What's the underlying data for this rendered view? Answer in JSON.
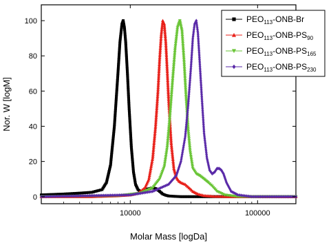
{
  "chart_data": {
    "type": "scatter",
    "xlabel": "Molar Mass [logDa]",
    "ylabel": "Nor. W [logM]",
    "xscale": "log",
    "xlim": [
      2000,
      200000
    ],
    "ylim": [
      -4,
      109
    ],
    "xticks": [
      {
        "value": 10000,
        "label": "10000"
      },
      {
        "value": 100000,
        "label": "100000"
      }
    ],
    "yticks": [
      {
        "value": 0,
        "label": "0"
      },
      {
        "value": 20,
        "label": "20"
      },
      {
        "value": 40,
        "label": "40"
      },
      {
        "value": 60,
        "label": "60"
      },
      {
        "value": 80,
        "label": "80"
      },
      {
        "value": 100,
        "label": "100"
      }
    ],
    "grid": false,
    "legend_position": "top-right",
    "series": [
      {
        "name": "PEO113-ONB-Br",
        "legend": {
          "base": "PEO",
          "sub1": "113",
          "mid": "-ONB-Br",
          "sub2": ""
        },
        "color": "#000000",
        "marker": "square",
        "x": [
          2000,
          3000,
          4000,
          5000,
          6000,
          6500,
          7000,
          7500,
          8000,
          8300,
          8600,
          8800,
          9000,
          9200,
          9500,
          9800,
          10200,
          10600,
          11000,
          11500,
          12000,
          12500,
          13000,
          14000,
          15000,
          16000,
          17000,
          18000,
          19000,
          20000,
          22000,
          25000,
          30000,
          40000,
          60000,
          100000,
          200000
        ],
        "y": [
          1,
          1.5,
          2,
          2.5,
          4,
          8,
          18,
          40,
          70,
          88,
          98,
          100,
          96,
          88,
          70,
          50,
          28,
          14,
          7,
          4,
          3,
          3,
          4,
          4.5,
          5,
          4.5,
          3,
          1.5,
          0.8,
          0.4,
          0.2,
          0,
          0,
          0,
          0,
          0,
          0
        ]
      },
      {
        "name": "PEO113-ONB-PS90",
        "legend": {
          "base": "PEO",
          "sub1": "113",
          "mid": "-ONB-PS",
          "sub2": "90"
        },
        "color": "#e8211a",
        "marker": "triangle-up",
        "x": [
          2000,
          5000,
          8000,
          10000,
          11500,
          13000,
          14000,
          15000,
          15800,
          16500,
          17000,
          17500,
          18000,
          18500,
          19000,
          19500,
          20000,
          21000,
          22000,
          23000,
          24000,
          25000,
          27000,
          29000,
          31000,
          34000,
          38000,
          45000,
          60000,
          100000,
          200000
        ],
        "y": [
          0,
          0,
          0.5,
          1,
          2,
          5,
          10,
          22,
          40,
          60,
          78,
          92,
          100,
          98,
          88,
          72,
          55,
          30,
          16,
          11,
          9,
          8,
          7,
          5,
          3,
          1.5,
          0.6,
          0.2,
          0,
          0,
          0
        ],
        "peak": 100
      },
      {
        "name": "PEO113-ONB-PS165",
        "legend": {
          "base": "PEO",
          "sub1": "113",
          "mid": "-ONB-PS",
          "sub2": "165"
        },
        "color": "#6ac537",
        "marker": "triangle-down",
        "x": [
          2000,
          8000,
          12000,
          15000,
          17000,
          18500,
          19500,
          20500,
          21500,
          22500,
          23500,
          24500,
          25500,
          26500,
          27500,
          28500,
          29500,
          31000,
          33000,
          35000,
          38000,
          41000,
          44000,
          48000,
          55000,
          70000,
          100000,
          200000
        ],
        "y": [
          0,
          0.5,
          2,
          5,
          10,
          17,
          28,
          46,
          66,
          84,
          96,
          100,
          94,
          76,
          55,
          38,
          26,
          16,
          13,
          12,
          10,
          8,
          6,
          3,
          1,
          0,
          0,
          0
        ]
      },
      {
        "name": "PEO113-ONB-PS230",
        "legend": {
          "base": "PEO",
          "sub1": "113",
          "mid": "-ONB-PS",
          "sub2": "230"
        },
        "color": "#5a2aa8",
        "marker": "diamond",
        "x": [
          2000,
          10000,
          15000,
          20000,
          23000,
          25000,
          27000,
          28500,
          30000,
          31000,
          32000,
          33000,
          34000,
          35000,
          36500,
          38000,
          40000,
          42000,
          44000,
          46000,
          48000,
          50000,
          52000,
          54000,
          57000,
          62000,
          70000,
          90000,
          200000
        ],
        "y": [
          0,
          1,
          3,
          7,
          12,
          20,
          34,
          52,
          74,
          90,
          98,
          100,
          93,
          78,
          56,
          36,
          22,
          15,
          13,
          14,
          16,
          16,
          15,
          13,
          8,
          3,
          1,
          0,
          0
        ]
      }
    ]
  }
}
